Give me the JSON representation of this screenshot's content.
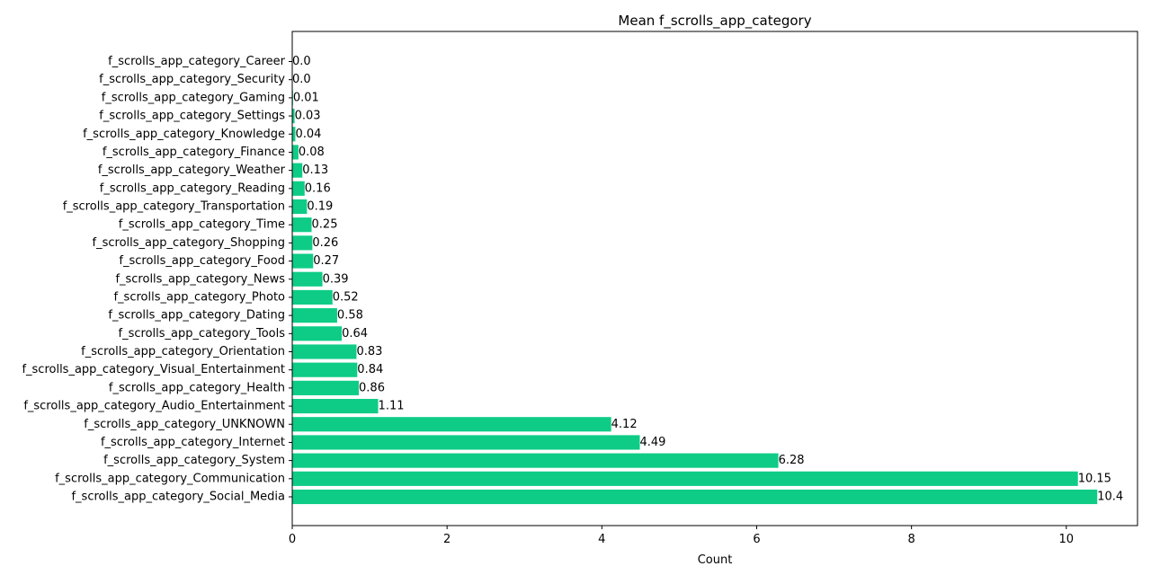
{
  "chart_data": {
    "type": "bar",
    "orientation": "horizontal",
    "title": "Mean f_scrolls_app_category",
    "xlabel": "Count",
    "ylabel": "",
    "xlim": [
      0,
      10.92
    ],
    "xticks": [
      0,
      2,
      4,
      6,
      8,
      10
    ],
    "grid": false,
    "bar_color": "#0ecc86",
    "categories": [
      "f_scrolls_app_category_Career",
      "f_scrolls_app_category_Security",
      "f_scrolls_app_category_Gaming",
      "f_scrolls_app_category_Settings",
      "f_scrolls_app_category_Knowledge",
      "f_scrolls_app_category_Finance",
      "f_scrolls_app_category_Weather",
      "f_scrolls_app_category_Reading",
      "f_scrolls_app_category_Transportation",
      "f_scrolls_app_category_Time",
      "f_scrolls_app_category_Shopping",
      "f_scrolls_app_category_Food",
      "f_scrolls_app_category_News",
      "f_scrolls_app_category_Photo",
      "f_scrolls_app_category_Dating",
      "f_scrolls_app_category_Tools",
      "f_scrolls_app_category_Orientation",
      "f_scrolls_app_category_Visual_Entertainment",
      "f_scrolls_app_category_Health",
      "f_scrolls_app_category_Audio_Entertainment",
      "f_scrolls_app_category_UNKNOWN",
      "f_scrolls_app_category_Internet",
      "f_scrolls_app_category_System",
      "f_scrolls_app_category_Communication",
      "f_scrolls_app_category_Social_Media"
    ],
    "values": [
      0.0,
      0.0,
      0.01,
      0.03,
      0.04,
      0.08,
      0.13,
      0.16,
      0.19,
      0.25,
      0.26,
      0.27,
      0.39,
      0.52,
      0.58,
      0.64,
      0.83,
      0.84,
      0.86,
      1.11,
      4.12,
      4.49,
      6.28,
      10.15,
      10.4
    ],
    "value_labels": [
      "0.0",
      "0.0",
      "0.01",
      "0.03",
      "0.04",
      "0.08",
      "0.13",
      "0.16",
      "0.19",
      "0.25",
      "0.26",
      "0.27",
      "0.39",
      "0.52",
      "0.58",
      "0.64",
      "0.83",
      "0.84",
      "0.86",
      "1.11",
      "4.12",
      "4.49",
      "6.28",
      "10.15",
      "10.4"
    ]
  }
}
